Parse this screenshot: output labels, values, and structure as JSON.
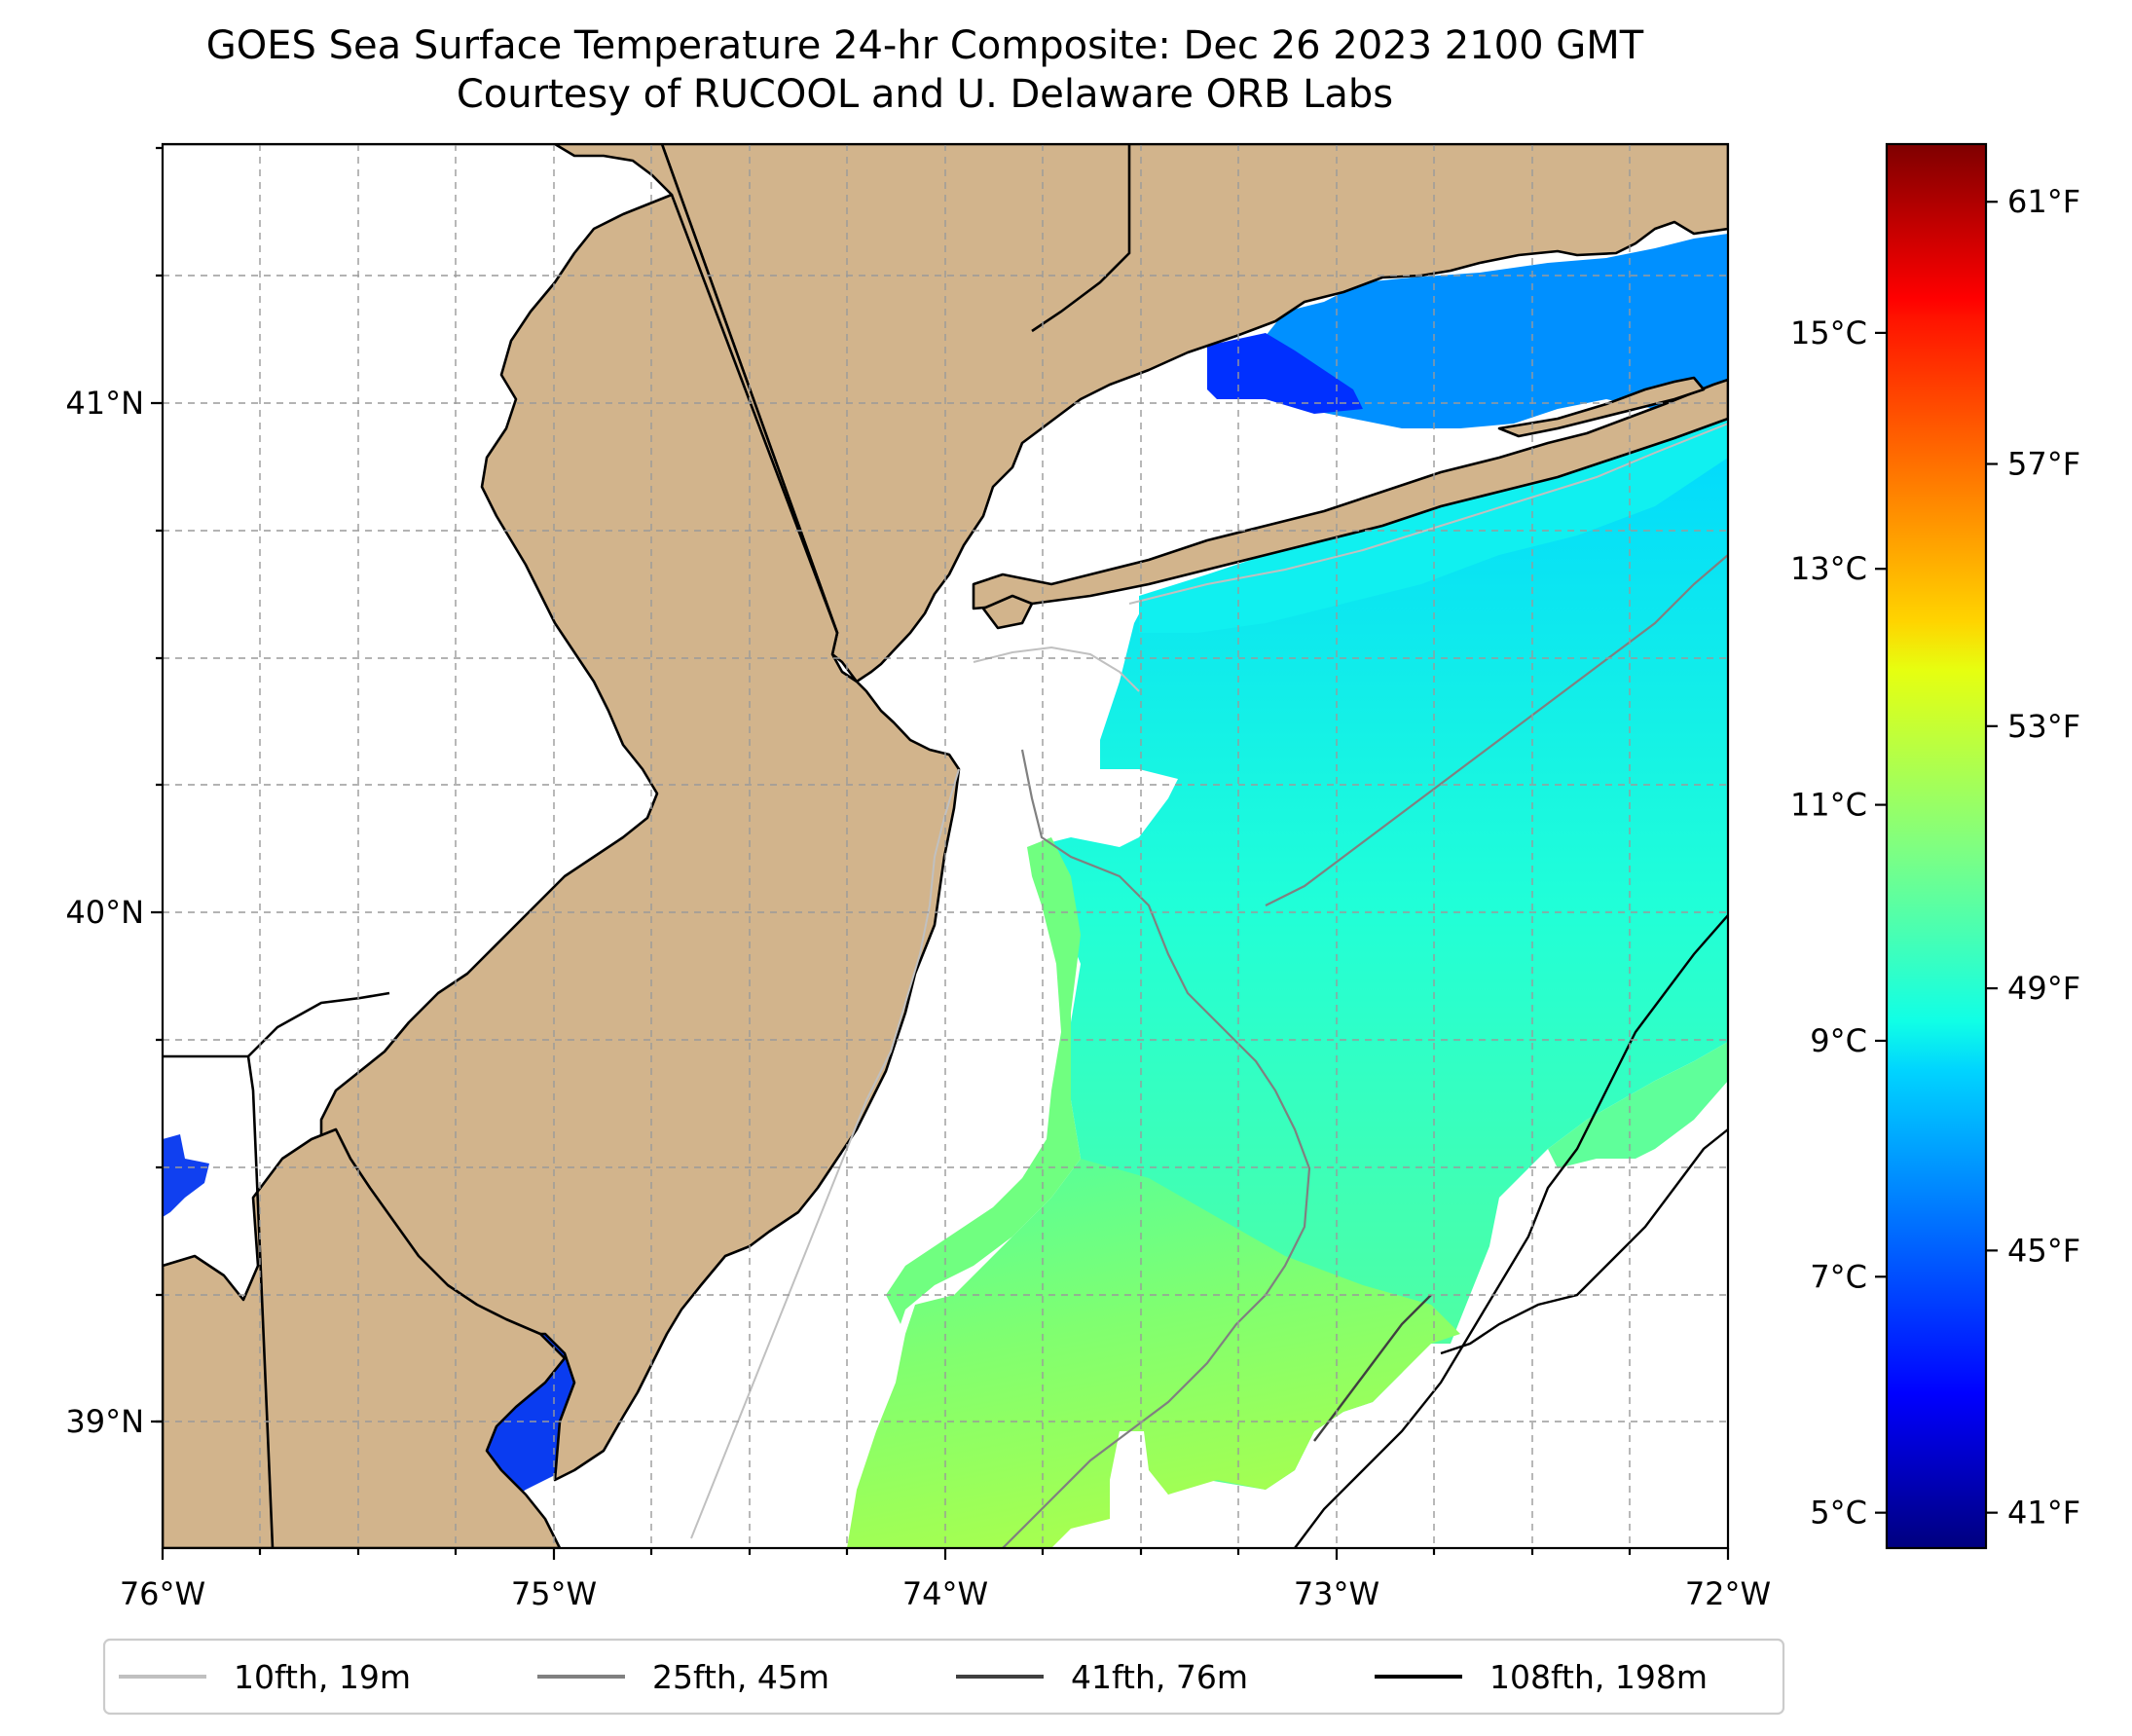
{
  "title": {
    "line1": "GOES Sea Surface Temperature 24-hr Composite: Dec 26 2023 2100 GMT",
    "line2": "Courtesy of RUCOOL and U. Delaware ORB Labs"
  },
  "map": {
    "lon_range": [
      -76,
      -72
    ],
    "lat_range": [
      38.75,
      41.5
    ],
    "lon_ticks": [
      -76,
      -75,
      -74,
      -73,
      -72
    ],
    "lon_tick_labels": [
      "76°W",
      "75°W",
      "74°W",
      "73°W",
      "72°W"
    ],
    "lat_ticks": [
      39,
      40,
      41
    ],
    "lat_tick_labels": [
      "39°N",
      "40°N",
      "41°N"
    ],
    "land_color": "#d2b48c",
    "gridlines": true
  },
  "colorbar": {
    "colormap": "jet",
    "range_c": [
      4.7,
      16.6
    ],
    "celsius_ticks": [
      5,
      7,
      9,
      11,
      13,
      15
    ],
    "celsius_labels": [
      "5°C",
      "7°C",
      "9°C",
      "11°C",
      "13°C",
      "15°C"
    ],
    "fahrenheit_ticks": [
      41,
      45,
      49,
      53,
      57,
      61
    ],
    "fahrenheit_labels": [
      "41°F",
      "45°F",
      "49°F",
      "53°F",
      "57°F",
      "61°F"
    ]
  },
  "legend": {
    "placement": "bottom",
    "items": [
      {
        "label": "10fth, 19m",
        "color": "#c0c0c0"
      },
      {
        "label": "25fth, 45m",
        "color": "#808080"
      },
      {
        "label": "41fth, 76m",
        "color": "#404040"
      },
      {
        "label": "108fth, 198m",
        "color": "#000000"
      }
    ]
  }
}
